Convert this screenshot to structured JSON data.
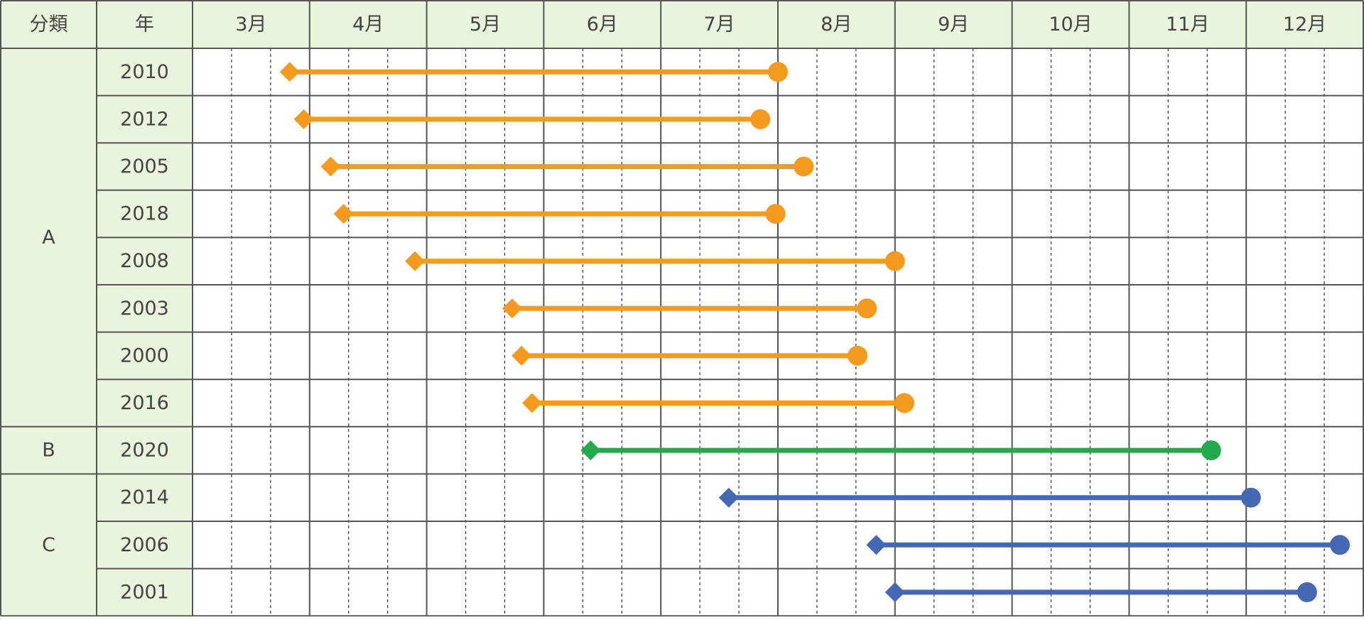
{
  "header": {
    "category_label": "分類",
    "year_label": "年",
    "months": [
      "3月",
      "4月",
      "5月",
      "6月",
      "7月",
      "8月",
      "9月",
      "10月",
      "11月",
      "12月"
    ]
  },
  "colors": {
    "header_bg": "#eaf3db",
    "grid_line": "#555555",
    "dash_line": "#333333",
    "A": "#f39a1f",
    "B": "#22aa4c",
    "C": "#4468b4"
  },
  "chart_data": {
    "type": "gantt",
    "x_axis": {
      "unit": "month",
      "range": [
        3,
        13
      ],
      "tick_labels": [
        "3月",
        "4月",
        "5月",
        "6月",
        "7月",
        "8月",
        "9月",
        "10月",
        "11月",
        "12月"
      ],
      "minor_divisions_per_month": 3
    },
    "start_marker": "diamond",
    "end_marker": "circle",
    "groups": [
      {
        "category": "A",
        "color": "#f39a1f",
        "rows": [
          {
            "year": "2010",
            "start": 3.83,
            "end": 8.0
          },
          {
            "year": "2012",
            "start": 3.95,
            "end": 7.85
          },
          {
            "year": "2005",
            "start": 4.18,
            "end": 8.22
          },
          {
            "year": "2018",
            "start": 4.29,
            "end": 7.98
          },
          {
            "year": "2008",
            "start": 4.9,
            "end": 9.0
          },
          {
            "year": "2003",
            "start": 5.73,
            "end": 8.76
          },
          {
            "year": "2000",
            "start": 5.81,
            "end": 8.68
          },
          {
            "year": "2016",
            "start": 5.9,
            "end": 9.08
          }
        ]
      },
      {
        "category": "B",
        "color": "#22aa4c",
        "rows": [
          {
            "year": "2020",
            "start": 6.4,
            "end": 11.7
          }
        ]
      },
      {
        "category": "C",
        "color": "#4468b4",
        "rows": [
          {
            "year": "2014",
            "start": 7.58,
            "end": 12.04
          },
          {
            "year": "2006",
            "start": 8.84,
            "end": 12.8
          },
          {
            "year": "2001",
            "start": 9.0,
            "end": 12.52
          }
        ]
      }
    ]
  }
}
